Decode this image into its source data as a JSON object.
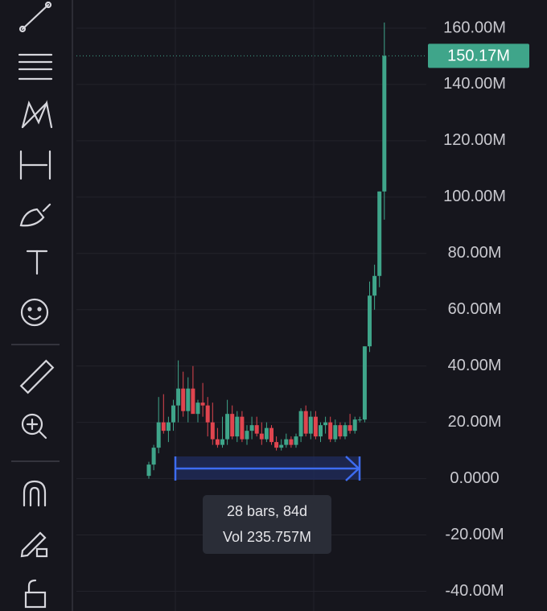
{
  "chart_data": {
    "type": "candlestick",
    "open": [
      1,
      5,
      11,
      20,
      17,
      20,
      26,
      32,
      24,
      32,
      23,
      27,
      26,
      20,
      14,
      12,
      14,
      23,
      15,
      22,
      14,
      17,
      19,
      16,
      14,
      18,
      13,
      11,
      12,
      14,
      12,
      15,
      24,
      16,
      22,
      15,
      19,
      20,
      14,
      19,
      15,
      19,
      17,
      21,
      21,
      47,
      65,
      72,
      102
    ],
    "high": [
      6,
      12,
      29,
      30,
      22,
      28,
      42,
      38,
      36,
      40,
      28,
      34,
      29,
      27,
      18,
      22,
      28,
      26,
      24,
      24,
      19,
      22,
      22,
      20,
      20,
      19,
      15,
      14,
      16,
      15,
      16,
      25,
      26,
      24,
      24,
      20,
      22,
      22,
      21,
      20,
      20,
      23,
      22,
      22,
      47,
      70,
      76,
      102,
      162
    ],
    "low": [
      0,
      3,
      9,
      16,
      13,
      17,
      20,
      22,
      20,
      24,
      20,
      22,
      15,
      12,
      11,
      11,
      12,
      14,
      13,
      13,
      12,
      14,
      15,
      12,
      13,
      12,
      10,
      10,
      11,
      11,
      11,
      13,
      15,
      14,
      14,
      13,
      16,
      13,
      13,
      14,
      14,
      16,
      16,
      20,
      20,
      45,
      60,
      68,
      92
    ],
    "close": [
      5,
      11,
      20,
      17,
      20,
      26,
      32,
      24,
      32,
      23,
      27,
      26,
      20,
      14,
      12,
      14,
      23,
      15,
      22,
      14,
      17,
      19,
      16,
      14,
      18,
      13,
      11,
      12,
      14,
      12,
      15,
      24,
      16,
      22,
      15,
      19,
      20,
      14,
      19,
      15,
      19,
      17,
      21,
      21,
      47,
      65,
      72,
      102,
      150.17
    ],
    "up_color": "#3fa58a",
    "down_color": "#e0454f",
    "ylim": [
      -47,
      170
    ],
    "yticks": [
      {
        "value": 160,
        "label": "160.00M"
      },
      {
        "value": 140,
        "label": "140.00M"
      },
      {
        "value": 120,
        "label": "120.00M"
      },
      {
        "value": 100,
        "label": "100.00M"
      },
      {
        "value": 80,
        "label": "80.00M"
      },
      {
        "value": 60,
        "label": "60.00M"
      },
      {
        "value": 40,
        "label": "40.00M"
      },
      {
        "value": 20,
        "label": "20.00M"
      },
      {
        "value": 0,
        "label": "0.0000"
      },
      {
        "value": -20,
        "label": "-20.00M"
      },
      {
        "value": -40,
        "label": "-40.00M"
      }
    ],
    "grid": true,
    "last_price_label": "150.17M",
    "measure": {
      "bars_label": "28 bars, 84d",
      "volume_label": "Vol 235.757M"
    }
  }
}
